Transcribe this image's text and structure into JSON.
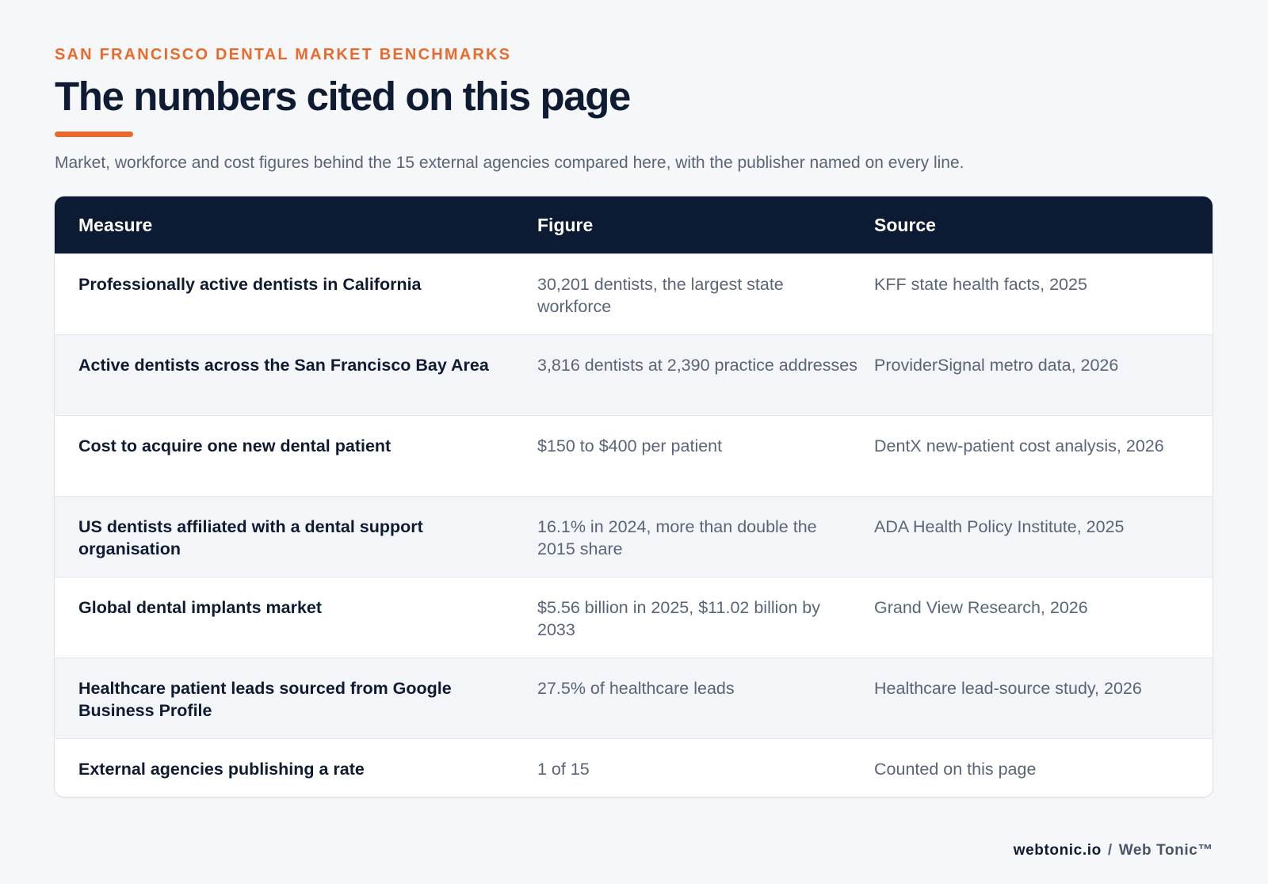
{
  "header": {
    "eyebrow": "SAN FRANCISCO DENTAL MARKET BENCHMARKS",
    "title": "The numbers cited on this page",
    "subtitle": "Market, workforce and cost figures behind the 15 external agencies compared here, with the publisher named on every line."
  },
  "table": {
    "columns": [
      "Measure",
      "Figure",
      "Source"
    ],
    "rows": [
      {
        "measure": "Professionally active dentists in California",
        "figure": "30,201 dentists, the largest state workforce",
        "source": "KFF state health facts, 2025"
      },
      {
        "measure": "Active dentists across the San Francisco Bay Area",
        "figure": "3,816 dentists at 2,390 practice addresses",
        "source": "ProviderSignal metro data, 2026"
      },
      {
        "measure": "Cost to acquire one new dental patient",
        "figure": "$150 to $400 per patient",
        "source": "DentX new-patient cost analysis, 2026"
      },
      {
        "measure": "US dentists affiliated with a dental support organisation",
        "figure": "16.1% in 2024, more than double the 2015 share",
        "source": "ADA Health Policy Institute, 2025"
      },
      {
        "measure": "Global dental implants market",
        "figure": "$5.56 billion in 2025, $11.02 billion by 2033",
        "source": "Grand View Research, 2026"
      },
      {
        "measure": "Healthcare patient leads sourced from Google Business Profile",
        "figure": "27.5% of healthcare leads",
        "source": "Healthcare lead-source study, 2026"
      },
      {
        "measure": "External agencies publishing a rate",
        "figure": "1 of 15",
        "source": "Counted on this page"
      }
    ]
  },
  "footer": {
    "domain": "webtonic.io",
    "separator": "/",
    "brand": "Web Tonic™"
  },
  "colors": {
    "accent": "#ea6a2c",
    "navy": "#0c1a33",
    "muted_text": "#5a6478"
  }
}
